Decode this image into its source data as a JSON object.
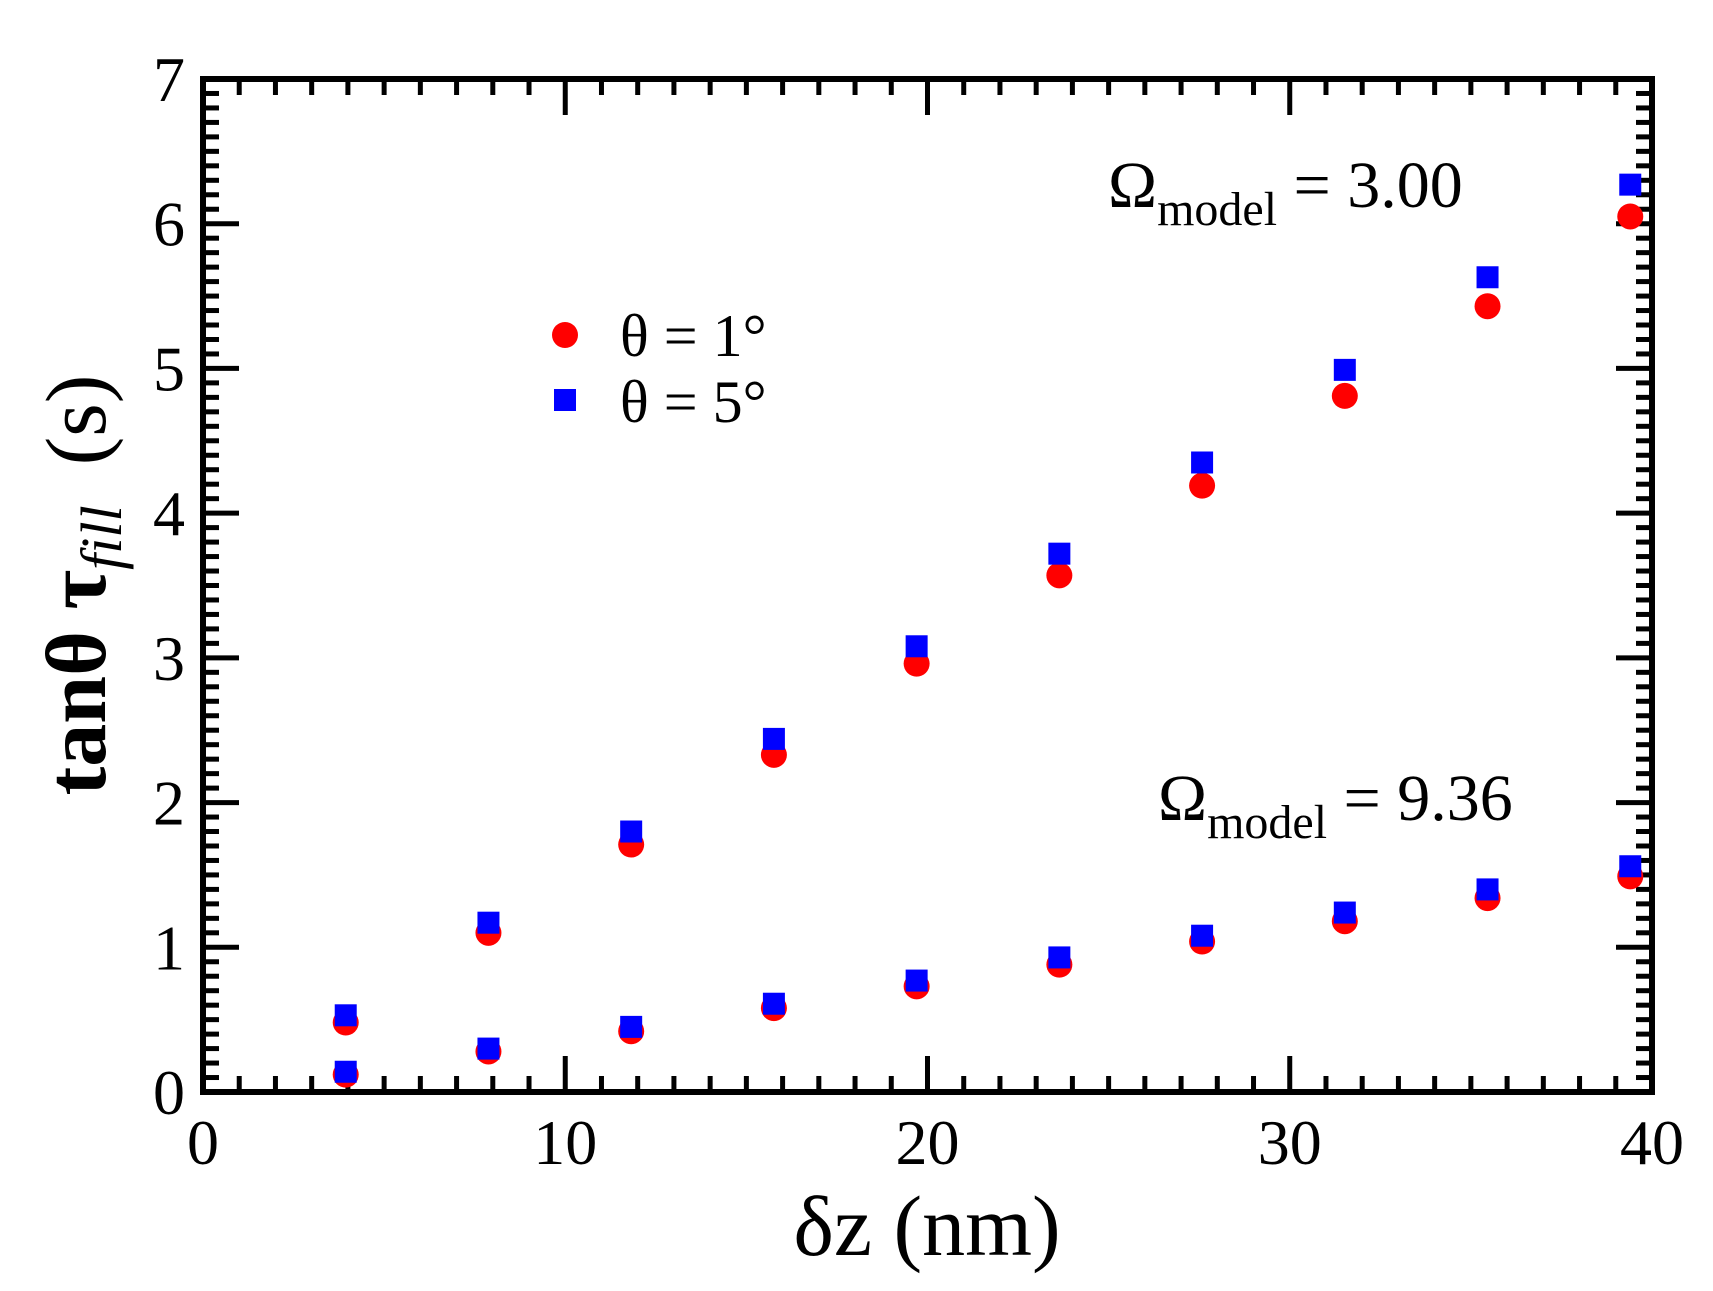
{
  "chart_data": {
    "type": "scatter",
    "title": "",
    "xlabel": "δz  (nm)",
    "ylabel": {
      "main": "tanθ τ",
      "sub": "fill",
      "unit": "(s)"
    },
    "xlim": [
      0,
      40
    ],
    "ylim": [
      0,
      7
    ],
    "xticks": [
      0,
      10,
      20,
      30,
      40
    ],
    "yticks": [
      0,
      1,
      2,
      3,
      4,
      5,
      6,
      7
    ],
    "grid": false,
    "legend_position": "upper-left-center",
    "x": [
      3.94,
      7.88,
      11.82,
      15.76,
      19.7,
      23.64,
      27.58,
      31.52,
      35.46,
      39.4
    ],
    "series": [
      {
        "name": "θ = 1°",
        "group": "Ω_model = 3.00",
        "marker": "circle",
        "color": "#ff0000",
        "values": [
          0.48,
          1.1,
          1.71,
          2.33,
          2.96,
          3.57,
          4.19,
          4.81,
          5.43,
          6.05
        ]
      },
      {
        "name": "θ = 5°",
        "group": "Ω_model = 3.00",
        "marker": "square",
        "color": "#0000ff",
        "values": [
          0.53,
          1.17,
          1.8,
          2.44,
          3.08,
          3.72,
          4.35,
          4.99,
          5.63,
          6.27
        ]
      },
      {
        "name": "θ = 1°",
        "group": "Ω_model = 9.36",
        "marker": "circle",
        "color": "#ff0000",
        "values": [
          0.12,
          0.28,
          0.42,
          0.58,
          0.73,
          0.88,
          1.04,
          1.18,
          1.34,
          1.49
        ]
      },
      {
        "name": "θ = 5°",
        "group": "Ω_model = 9.36",
        "marker": "square",
        "color": "#0000ff",
        "values": [
          0.14,
          0.3,
          0.45,
          0.61,
          0.77,
          0.93,
          1.08,
          1.24,
          1.4,
          1.56
        ]
      }
    ],
    "legend": [
      {
        "label": "θ = 1°",
        "marker": "circle",
        "color": "#ff0000"
      },
      {
        "label": "θ = 5°",
        "marker": "square",
        "color": "#0000ff"
      }
    ],
    "annotations": [
      {
        "symbol": "Ω",
        "sub": "model",
        "text": " = 3.00"
      },
      {
        "symbol": "Ω",
        "sub": "model",
        "text": " = 9.36"
      }
    ]
  }
}
